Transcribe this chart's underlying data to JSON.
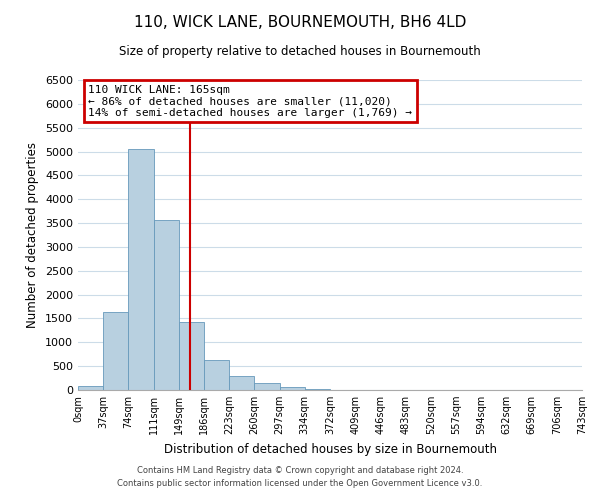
{
  "title": "110, WICK LANE, BOURNEMOUTH, BH6 4LD",
  "subtitle": "Size of property relative to detached houses in Bournemouth",
  "xlabel": "Distribution of detached houses by size in Bournemouth",
  "ylabel": "Number of detached properties",
  "bin_labels": [
    "0sqm",
    "37sqm",
    "74sqm",
    "111sqm",
    "149sqm",
    "186sqm",
    "223sqm",
    "260sqm",
    "297sqm",
    "334sqm",
    "372sqm",
    "409sqm",
    "446sqm",
    "483sqm",
    "520sqm",
    "557sqm",
    "594sqm",
    "632sqm",
    "669sqm",
    "706sqm",
    "743sqm"
  ],
  "bar_values": [
    80,
    1630,
    5060,
    3560,
    1420,
    620,
    300,
    140,
    60,
    25,
    0,
    0,
    0,
    0,
    0,
    0,
    0,
    0,
    0,
    0
  ],
  "bar_color": "#b8d0e0",
  "bar_edge_color": "#6699bb",
  "property_line_x": 4.46,
  "property_line_color": "#cc0000",
  "annotation_title": "110 WICK LANE: 165sqm",
  "annotation_line1": "← 86% of detached houses are smaller (11,020)",
  "annotation_line2": "14% of semi-detached houses are larger (1,769) →",
  "annotation_box_color": "#cc0000",
  "ylim": [
    0,
    6500
  ],
  "yticks": [
    0,
    500,
    1000,
    1500,
    2000,
    2500,
    3000,
    3500,
    4000,
    4500,
    5000,
    5500,
    6000,
    6500
  ],
  "footer1": "Contains HM Land Registry data © Crown copyright and database right 2024.",
  "footer2": "Contains public sector information licensed under the Open Government Licence v3.0.",
  "bg_color": "#ffffff",
  "grid_color": "#ccdce8"
}
